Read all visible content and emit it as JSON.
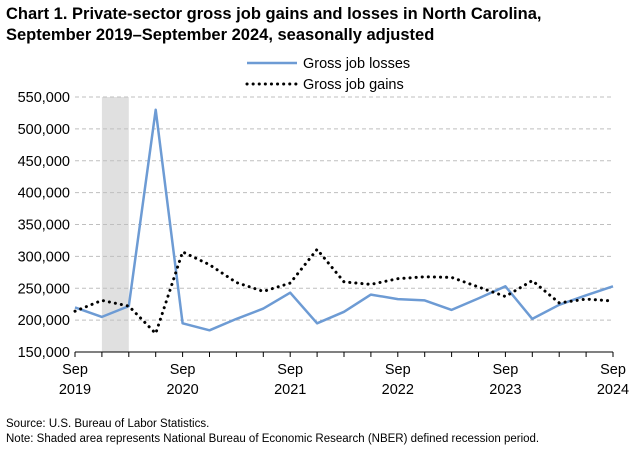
{
  "chart_data": {
    "type": "line",
    "title_line1": "Chart 1. Private-sector gross job gains and losses in North Carolina,",
    "title_line2": "September 2019–September 2024, seasonally adjusted",
    "xlabel": "",
    "ylabel": "",
    "ylim": [
      150000,
      550000
    ],
    "yticks": [
      150000,
      200000,
      250000,
      300000,
      350000,
      400000,
      450000,
      500000,
      550000
    ],
    "ytick_labels": [
      "150,000",
      "200,000",
      "250,000",
      "300,000",
      "350,000",
      "400,000",
      "450,000",
      "500,000",
      "550,000"
    ],
    "xtick_labels": [
      {
        "line1": "Sep",
        "line2": "2019"
      },
      {
        "line1": "Sep",
        "line2": "2020"
      },
      {
        "line1": "Sep",
        "line2": "2021"
      },
      {
        "line1": "Sep",
        "line2": "2022"
      },
      {
        "line1": "Sep",
        "line2": "2023"
      },
      {
        "line1": "Sep",
        "line2": "2024"
      }
    ],
    "x": [
      "Sep 2019",
      "Dec 2019",
      "Mar 2020",
      "Jun 2020",
      "Sep 2020",
      "Dec 2020",
      "Mar 2021",
      "Jun 2021",
      "Sep 2021",
      "Dec 2021",
      "Mar 2022",
      "Jun 2022",
      "Sep 2022",
      "Dec 2022",
      "Mar 2023",
      "Jun 2023",
      "Sep 2023",
      "Dec 2023",
      "Mar 2024",
      "Jun 2024",
      "Sep 2024"
    ],
    "grid": "horizontal-dashed",
    "legend_position": "top-center",
    "recession_shading": {
      "from": "Dec 2019",
      "to": "Mar 2020",
      "color": "#e0e0e0"
    },
    "series": [
      {
        "name": "Gross job losses",
        "style": "solid",
        "color": "#6d9bd4",
        "values": [
          220000,
          205000,
          222000,
          530000,
          195000,
          184000,
          202000,
          218000,
          243000,
          195000,
          213000,
          240000,
          233000,
          231000,
          216000,
          234000,
          253000,
          202000,
          224000,
          239000,
          253000
        ]
      },
      {
        "name": "Gross job gains",
        "style": "dotted",
        "color": "#000000",
        "values": [
          214000,
          231000,
          222000,
          179000,
          307000,
          287000,
          259000,
          245000,
          258000,
          311000,
          260000,
          256000,
          265000,
          268000,
          267000,
          252000,
          237000,
          262000,
          227000,
          233000,
          230000
        ]
      }
    ]
  },
  "footer": {
    "source": "Source: U.S. Bureau of Labor Statistics.",
    "note": "Note: Shaded area represents National Bureau of Economic Research (NBER) defined recession period."
  }
}
